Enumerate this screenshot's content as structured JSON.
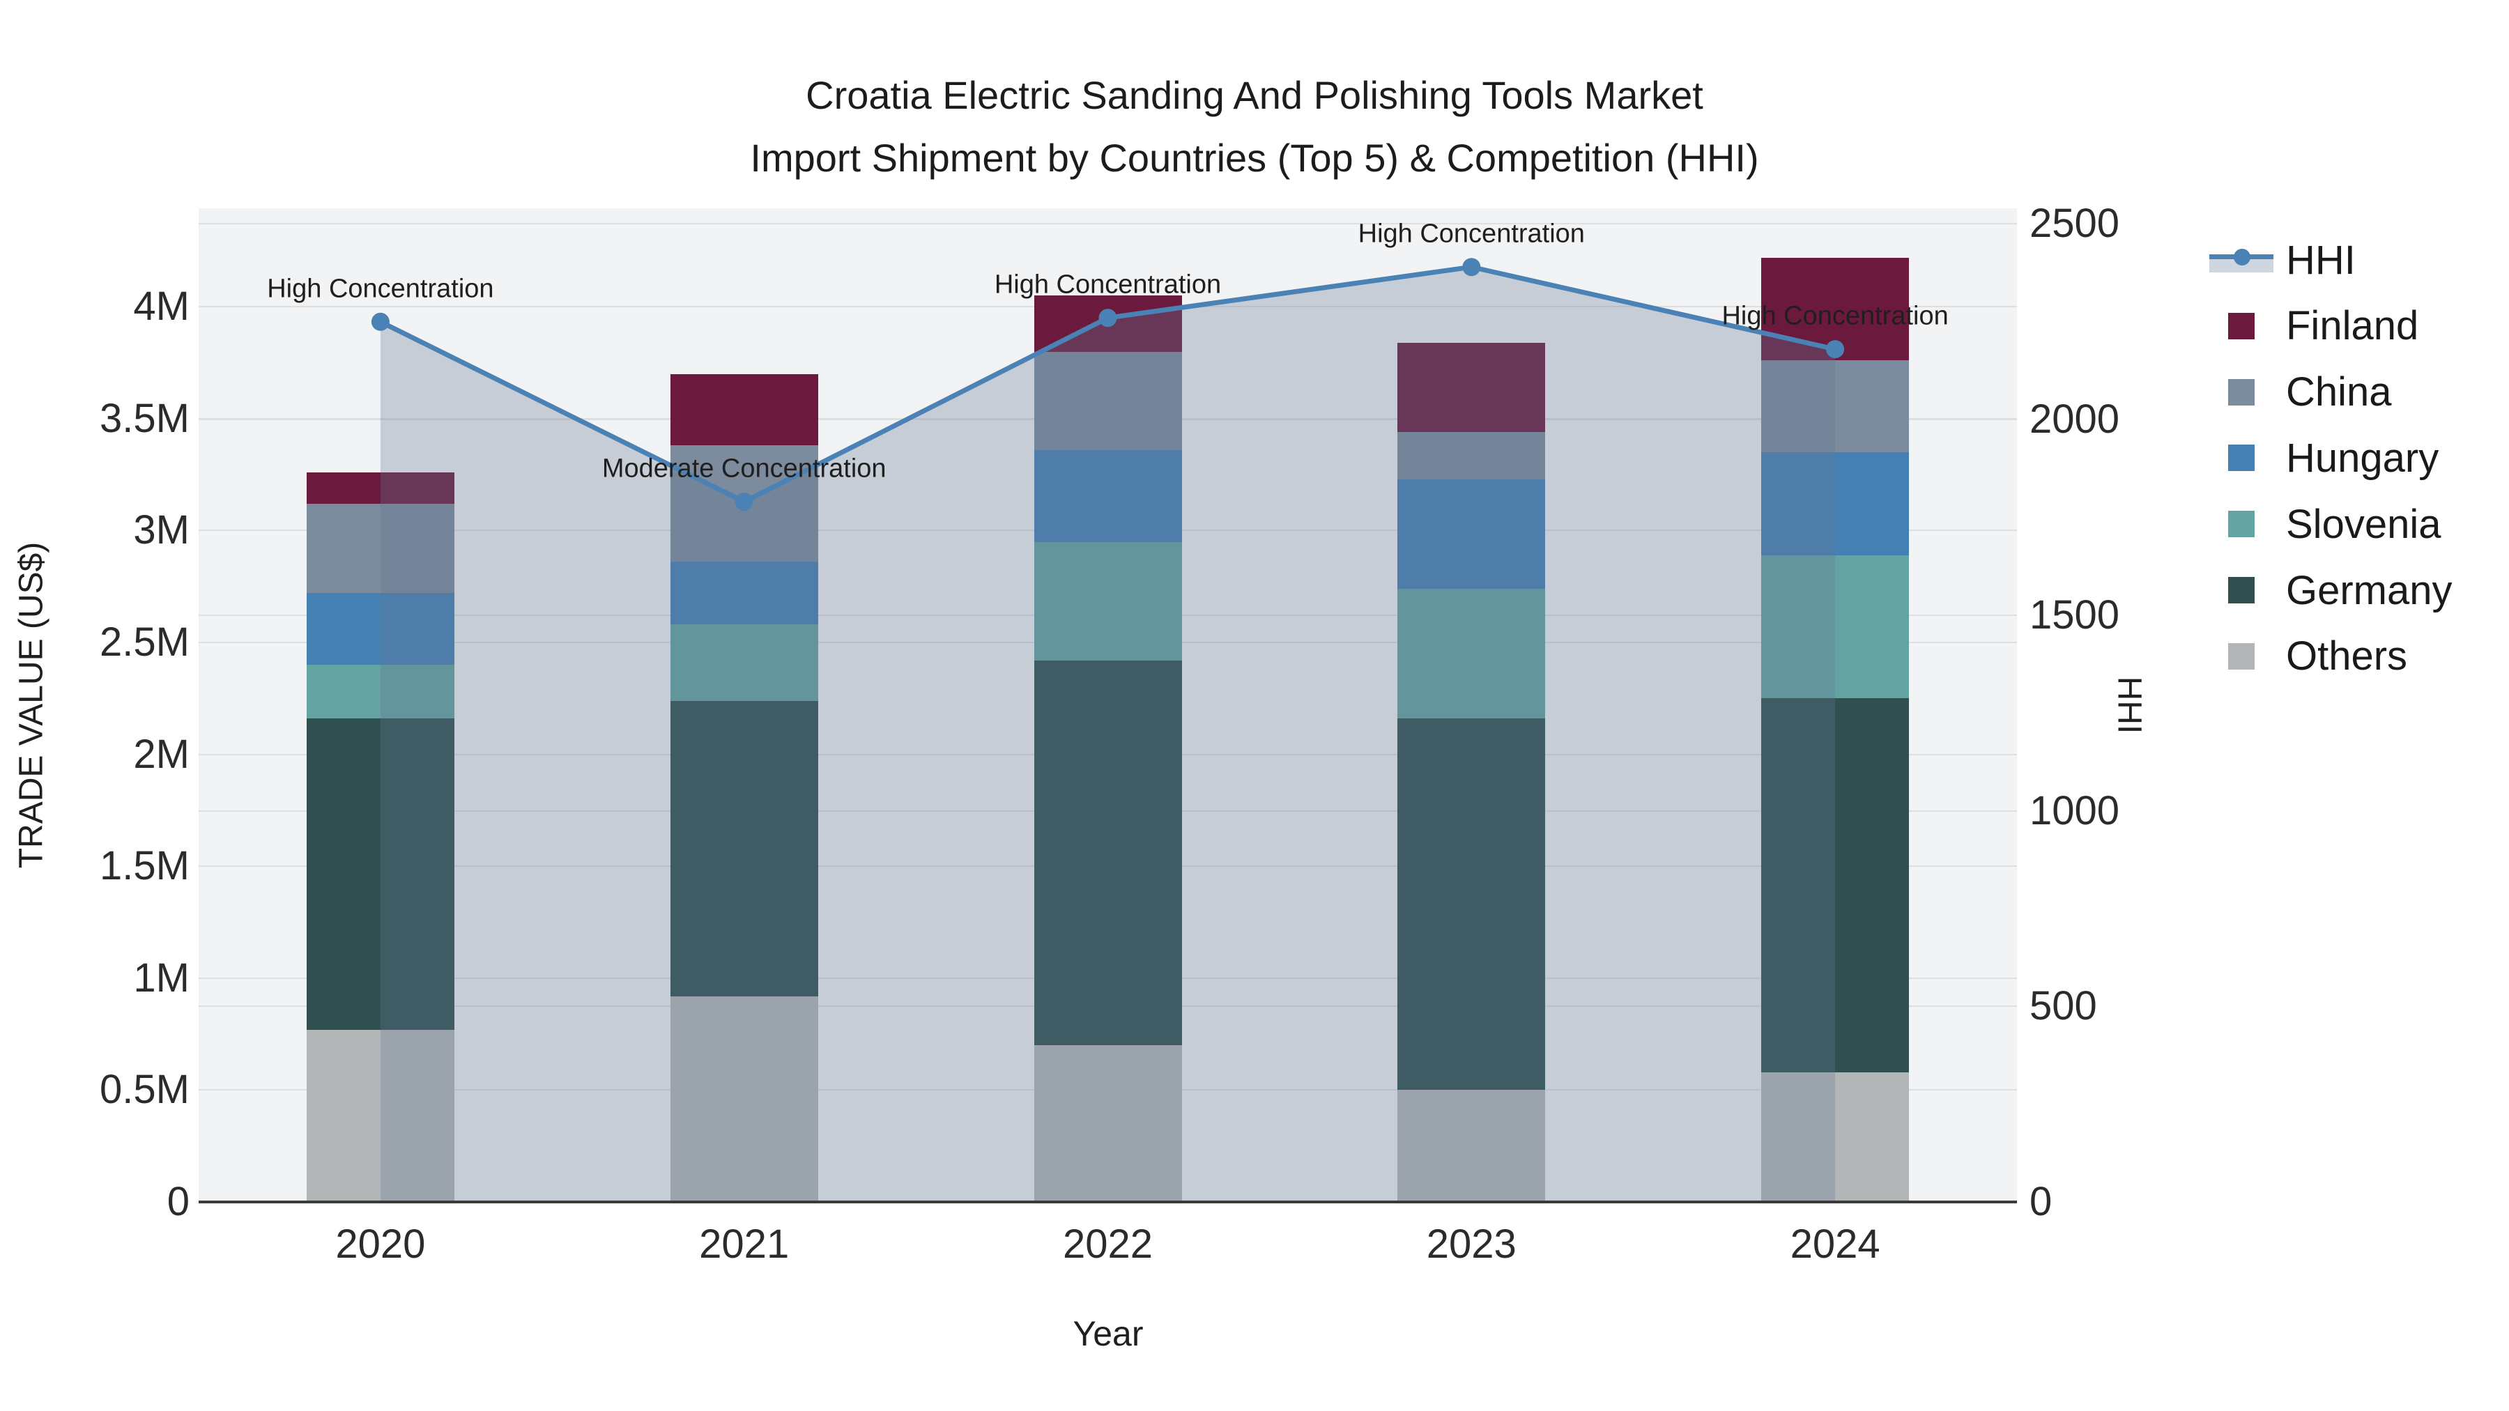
{
  "title": {
    "line1": "Croatia Electric Sanding And Polishing Tools Market",
    "line2": "Import Shipment by Countries (Top 5) & Competition (HHI)"
  },
  "chart_data": {
    "type": "stacked-bar+line",
    "categories": [
      "2020",
      "2021",
      "2022",
      "2023",
      "2024"
    ],
    "series": [
      {
        "name": "Others",
        "color": "#B3B6B7",
        "values": [
          0.77,
          0.92,
          0.7,
          0.5,
          0.58
        ]
      },
      {
        "name": "Germany",
        "color": "#30504F",
        "values": [
          1.39,
          1.32,
          1.72,
          1.66,
          1.67
        ]
      },
      {
        "name": "Slovenia",
        "color": "#63A3A1",
        "values": [
          0.24,
          0.34,
          0.53,
          0.58,
          0.64
        ]
      },
      {
        "name": "Hungary",
        "color": "#4580B4",
        "values": [
          0.32,
          0.28,
          0.41,
          0.49,
          0.46
        ]
      },
      {
        "name": "China",
        "color": "#7C8B9D",
        "values": [
          0.4,
          0.52,
          0.44,
          0.21,
          0.41
        ]
      },
      {
        "name": "Finland",
        "color": "#6B1A3D",
        "values": [
          0.14,
          0.32,
          0.25,
          0.4,
          0.46
        ]
      }
    ],
    "bar_totals_musd": [
      3.26,
      3.7,
      4.05,
      3.84,
      4.22
    ],
    "line_series": {
      "name": "HHI",
      "color": "#4A82B6",
      "fill_color": "rgba(100,120,150,0.30)",
      "values": [
        2250,
        1790,
        2260,
        2390,
        2180
      ]
    },
    "annotations": [
      {
        "category": "2020",
        "text": "High Concentration"
      },
      {
        "category": "2021",
        "text": "Moderate Concentration"
      },
      {
        "category": "2022",
        "text": "High Concentration"
      },
      {
        "category": "2023",
        "text": "High Concentration"
      },
      {
        "category": "2024",
        "text": "High Concentration"
      }
    ],
    "left_axis": {
      "title": "TRADE VALUE (US$)",
      "tick_labels": [
        "0",
        "0.5M",
        "1M",
        "1.5M",
        "2M",
        "2.5M",
        "3M",
        "3.5M",
        "4M"
      ],
      "tick_values": [
        0,
        0.5,
        1,
        1.5,
        2,
        2.5,
        3,
        3.5,
        4
      ],
      "range": [
        0,
        4.44
      ]
    },
    "right_axis": {
      "title": "HHI",
      "tick_labels": [
        "0",
        "500",
        "1000",
        "1500",
        "2000",
        "2500"
      ],
      "tick_values": [
        0,
        500,
        1000,
        1500,
        2000,
        2500
      ],
      "range": [
        0,
        2540
      ]
    },
    "x_axis": {
      "title": "Year"
    },
    "grid": true,
    "legend_position": "right",
    "legend": [
      {
        "label": "HHI",
        "type": "line",
        "color": "#4A82B6",
        "fill": "rgba(100,120,150,0.30)"
      },
      {
        "label": "Finland",
        "type": "box",
        "color": "#6B1A3D"
      },
      {
        "label": "China",
        "type": "box",
        "color": "#7C8B9D"
      },
      {
        "label": "Hungary",
        "type": "box",
        "color": "#4580B4"
      },
      {
        "label": "Slovenia",
        "type": "box",
        "color": "#63A3A1"
      },
      {
        "label": "Germany",
        "type": "box",
        "color": "#30504F"
      },
      {
        "label": "Others",
        "type": "box",
        "color": "#B3B6B7"
      }
    ]
  }
}
